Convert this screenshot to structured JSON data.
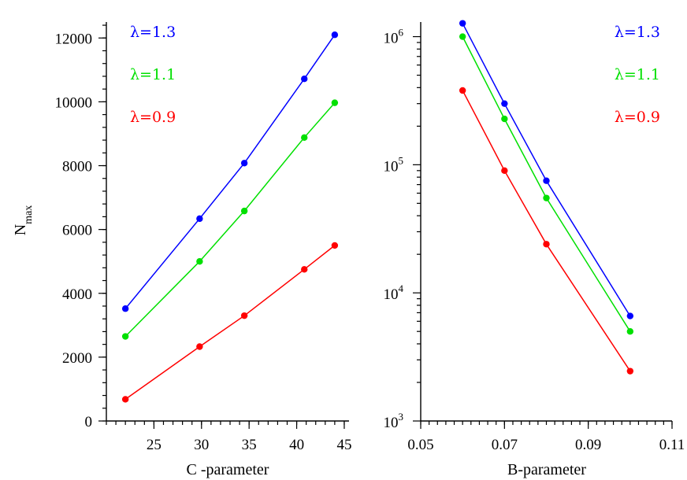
{
  "chart_data": [
    {
      "type": "line",
      "xlabel": "C -parameter",
      "ylabel": "N",
      "ylabel_sub": "max",
      "xlim": [
        20,
        45.5
      ],
      "ylim": [
        0,
        12500
      ],
      "x_scale": "linear",
      "y_scale": "linear",
      "x_ticks": [
        25,
        30,
        35,
        40,
        45
      ],
      "x_tick_labels": [
        "25",
        "30",
        "35",
        "40",
        "45"
      ],
      "x_minor_step": 1,
      "y_ticks": [
        0,
        2000,
        4000,
        6000,
        8000,
        10000,
        12000
      ],
      "y_tick_labels": [
        "0",
        "2000",
        "4000",
        "6000",
        "8000",
        "10000",
        "12000"
      ],
      "y_minor_step": 400,
      "grid": false,
      "legend_position": "top-left",
      "series": [
        {
          "name": "λ=1.3",
          "color": "#0000ff",
          "x": [
            22,
            29.8,
            34.5,
            40.8,
            44
          ],
          "y": [
            3520,
            6340,
            8080,
            10720,
            12100
          ]
        },
        {
          "name": "λ=1.1",
          "color": "#00e000",
          "x": [
            22,
            29.8,
            34.5,
            40.8,
            44
          ],
          "y": [
            2650,
            5000,
            6580,
            8880,
            9970
          ]
        },
        {
          "name": "λ=0.9",
          "color": "#ff0000",
          "x": [
            22,
            29.8,
            34.5,
            40.8,
            44
          ],
          "y": [
            680,
            2330,
            3300,
            4750,
            5500
          ]
        }
      ]
    },
    {
      "type": "line",
      "xlabel": "B-parameter",
      "xlim": [
        0.05,
        0.11
      ],
      "ylim": [
        1000,
        1300000
      ],
      "x_scale": "linear",
      "y_scale": "log",
      "x_ticks": [
        0.05,
        0.07,
        0.09,
        0.11
      ],
      "x_tick_labels": [
        "0.05",
        "0.07",
        "0.09",
        "0.11"
      ],
      "x_minor_step": 0.002,
      "y_ticks": [
        1000,
        10000,
        100000,
        1000000
      ],
      "y_tick_base": [
        "10",
        "10",
        "10",
        "10"
      ],
      "y_tick_exp": [
        "3",
        "4",
        "5",
        "6"
      ],
      "grid": false,
      "legend_position": "top-right",
      "series": [
        {
          "name": "λ=1.3",
          "color": "#0000ff",
          "x": [
            0.06,
            0.07,
            0.08,
            0.1
          ],
          "y": [
            1270000,
            300000,
            75000,
            6600
          ]
        },
        {
          "name": "λ=1.1",
          "color": "#00e000",
          "x": [
            0.06,
            0.07,
            0.08,
            0.1
          ],
          "y": [
            1000000,
            228000,
            55000,
            5000
          ]
        },
        {
          "name": "λ=0.9",
          "color": "#ff0000",
          "x": [
            0.06,
            0.07,
            0.08,
            0.1
          ],
          "y": [
            380000,
            90000,
            24000,
            2450
          ]
        }
      ]
    }
  ]
}
